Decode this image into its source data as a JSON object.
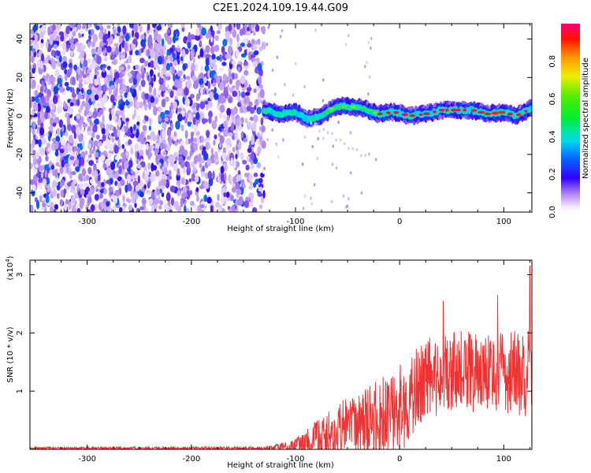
{
  "title": "C2E1.2024.109.19.44.G09",
  "chart_data": [
    {
      "type": "heatmap",
      "xlabel": "Height of straight line (km)",
      "ylabel": "Frequency (Hz)",
      "xlim": [
        -355,
        127
      ],
      "ylim": [
        -50,
        48
      ],
      "xticks": [
        -300,
        -200,
        -100,
        0,
        100
      ],
      "yticks": [
        -40,
        -20,
        0,
        20,
        40
      ],
      "colorbar": {
        "label": "Normalized spectral amplitude",
        "range": [
          0,
          1
        ],
        "ticks": [
          0.0,
          0.2,
          0.4,
          0.6,
          0.8
        ],
        "tick_labels": [
          "0.0",
          "0.2",
          "0.4",
          "0.6",
          "0.8"
        ]
      },
      "noise_region": {
        "x_from": -355,
        "x_to": -130,
        "dense_until": -220,
        "amplitude_max": 0.3
      },
      "signal_track": [
        {
          "x": -130,
          "y": 3
        },
        {
          "x": -115,
          "y": 1
        },
        {
          "x": -100,
          "y": 2
        },
        {
          "x": -88,
          "y": -2
        },
        {
          "x": -75,
          "y": 0
        },
        {
          "x": -62,
          "y": 5
        },
        {
          "x": -50,
          "y": 5
        },
        {
          "x": -35,
          "y": 4
        },
        {
          "x": -20,
          "y": 1
        },
        {
          "x": -5,
          "y": 2
        },
        {
          "x": 10,
          "y": 0
        },
        {
          "x": 25,
          "y": 1
        },
        {
          "x": 40,
          "y": 3
        },
        {
          "x": 55,
          "y": 3
        },
        {
          "x": 70,
          "y": 3
        },
        {
          "x": 85,
          "y": 1
        },
        {
          "x": 100,
          "y": 2
        },
        {
          "x": 112,
          "y": 0
        },
        {
          "x": 127,
          "y": 4
        }
      ]
    },
    {
      "type": "line",
      "xlabel": "Height of straight line (km)",
      "ylabel": "SNR (10 * v/v)",
      "multiplier_label": "(x10",
      "multiplier_exp": "4",
      "xlim": [
        -355,
        127
      ],
      "ylim": [
        0,
        3.25
      ],
      "xticks": [
        -300,
        -200,
        -100,
        0,
        100
      ],
      "yticks": [
        1,
        2,
        3
      ],
      "color": "#ee3333",
      "envelope": [
        {
          "x": -355,
          "base": 0.02,
          "amp": 0.02
        },
        {
          "x": -130,
          "base": 0.02,
          "amp": 0.03
        },
        {
          "x": -100,
          "base": 0.06,
          "amp": 0.12
        },
        {
          "x": -70,
          "base": 0.25,
          "amp": 0.4
        },
        {
          "x": -50,
          "base": 0.4,
          "amp": 0.5
        },
        {
          "x": -30,
          "base": 0.5,
          "amp": 0.6
        },
        {
          "x": -5,
          "base": 0.6,
          "amp": 0.8
        },
        {
          "x": 25,
          "base": 1.2,
          "amp": 0.7
        },
        {
          "x": 60,
          "base": 1.35,
          "amp": 0.7
        },
        {
          "x": 100,
          "base": 1.3,
          "amp": 0.7
        },
        {
          "x": 127,
          "base": 1.3,
          "amp": 0.8
        }
      ],
      "peaks": [
        {
          "x": 42,
          "y": 2.55
        },
        {
          "x": 94,
          "y": 2.65
        },
        {
          "x": 125,
          "y": 3.15
        }
      ]
    }
  ]
}
